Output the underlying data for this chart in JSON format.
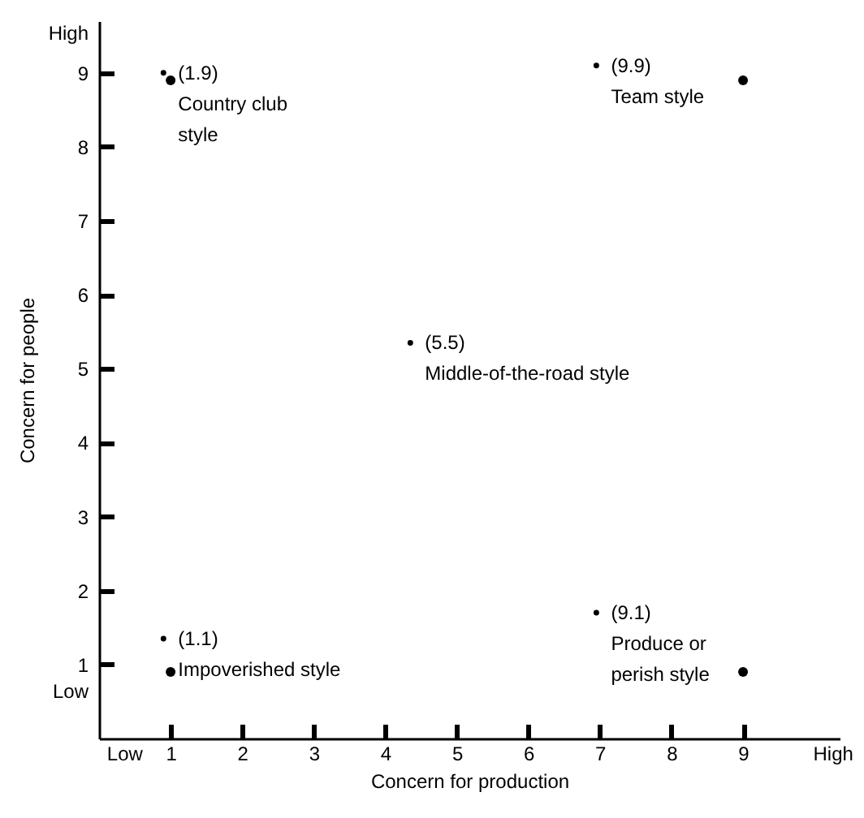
{
  "chart_data": {
    "type": "scatter",
    "xlabel": "Concern for production",
    "ylabel": "Concern for people",
    "xlim": [
      0,
      10.35
    ],
    "ylim": [
      0,
      9.7
    ],
    "xticks": [
      {
        "value": 0.35,
        "label": "Low"
      },
      1,
      2,
      3,
      4,
      5,
      6,
      7,
      8,
      9,
      {
        "value": 10.25,
        "label": "High"
      }
    ],
    "yticks": [
      {
        "value": 0.65,
        "label": "Low"
      },
      1,
      2,
      3,
      4,
      5,
      6,
      7,
      8,
      9,
      {
        "value": 9.55,
        "label": "High"
      }
    ],
    "grid": false,
    "marker": "circle",
    "series": [
      {
        "color": "#000000",
        "x": [
          1,
          9,
          1,
          9
        ],
        "values": [
          8.9,
          8.9,
          0.9,
          0.9
        ]
      },
      {
        "color": "#000000",
        "x": [
          0.9,
          6.95,
          4.35,
          0.9,
          6.95
        ],
        "values": [
          9.0,
          9.1,
          5.35,
          1.35,
          1.7
        ]
      }
    ],
    "annotations": [
      {
        "text": "(1.9)\nCountry club\nstyle",
        "x": 0.9,
        "y": 9.0
      },
      {
        "text": "(9.9)\nTeam style",
        "x": 6.95,
        "y": 9.1
      },
      {
        "text": "(5.5)\nMiddle-of-the-road style",
        "x": 4.35,
        "y": 5.35
      },
      {
        "text": "(1.1)\nImpoverished style",
        "x": 0.9,
        "y": 1.35
      },
      {
        "text": "(9.1)\nProduce or\nperish style",
        "x": 6.95,
        "y": 1.7
      }
    ]
  }
}
